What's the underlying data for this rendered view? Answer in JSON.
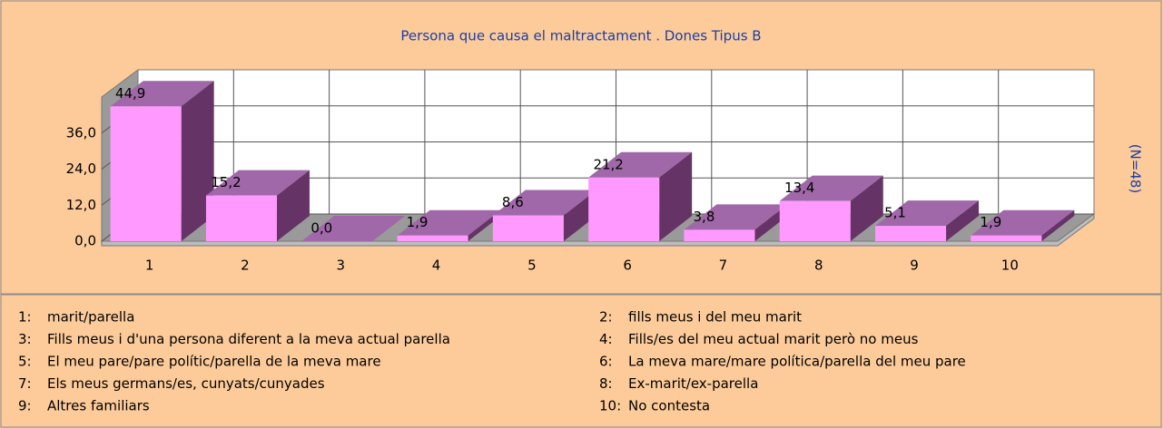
{
  "chart_data": {
    "type": "bar",
    "title": "Persona que causa el maltractament . Dones Tipus B",
    "side_label": "(N=48)",
    "categories": [
      "1",
      "2",
      "3",
      "4",
      "5",
      "6",
      "7",
      "8",
      "9",
      "10"
    ],
    "values": [
      44.9,
      15.2,
      0.0,
      1.9,
      8.6,
      21.2,
      3.8,
      13.4,
      5.1,
      1.9
    ],
    "value_labels": [
      "44,9",
      "15,2",
      "0,0",
      "1,9",
      "8,6",
      "21,2",
      "3,8",
      "13,4",
      "5,1",
      "1,9"
    ],
    "ylim": [
      0,
      48
    ],
    "yticks": [
      {
        "value": 0,
        "label": "0,0"
      },
      {
        "value": 12,
        "label": "12,0"
      },
      {
        "value": 24,
        "label": "24,0"
      },
      {
        "value": 36,
        "label": "36,0"
      }
    ],
    "grid": true,
    "colors": {
      "front": "#ff99ff",
      "top": "#a068a8",
      "side": "#663366"
    },
    "legend": [
      {
        "key": "1:",
        "text": "marit/parella"
      },
      {
        "key": "2:",
        "text": "fills meus i del meu marit"
      },
      {
        "key": "3:",
        "text": "Fills meus i d'una persona diferent a la meva actual parella"
      },
      {
        "key": "4:",
        "text": "Fills/es del meu actual marit però no meus"
      },
      {
        "key": "5:",
        "text": "El meu pare/pare polític/parella de la meva mare"
      },
      {
        "key": "6:",
        "text": "La meva mare/mare política/parella del meu pare"
      },
      {
        "key": "7:",
        "text": "Els meus germans/es, cunyats/cunyades"
      },
      {
        "key": "8:",
        "text": "Ex-marit/ex-parella"
      },
      {
        "key": "9:",
        "text": "Altres familiars"
      },
      {
        "key": "10:",
        "text": "No contesta"
      }
    ]
  }
}
